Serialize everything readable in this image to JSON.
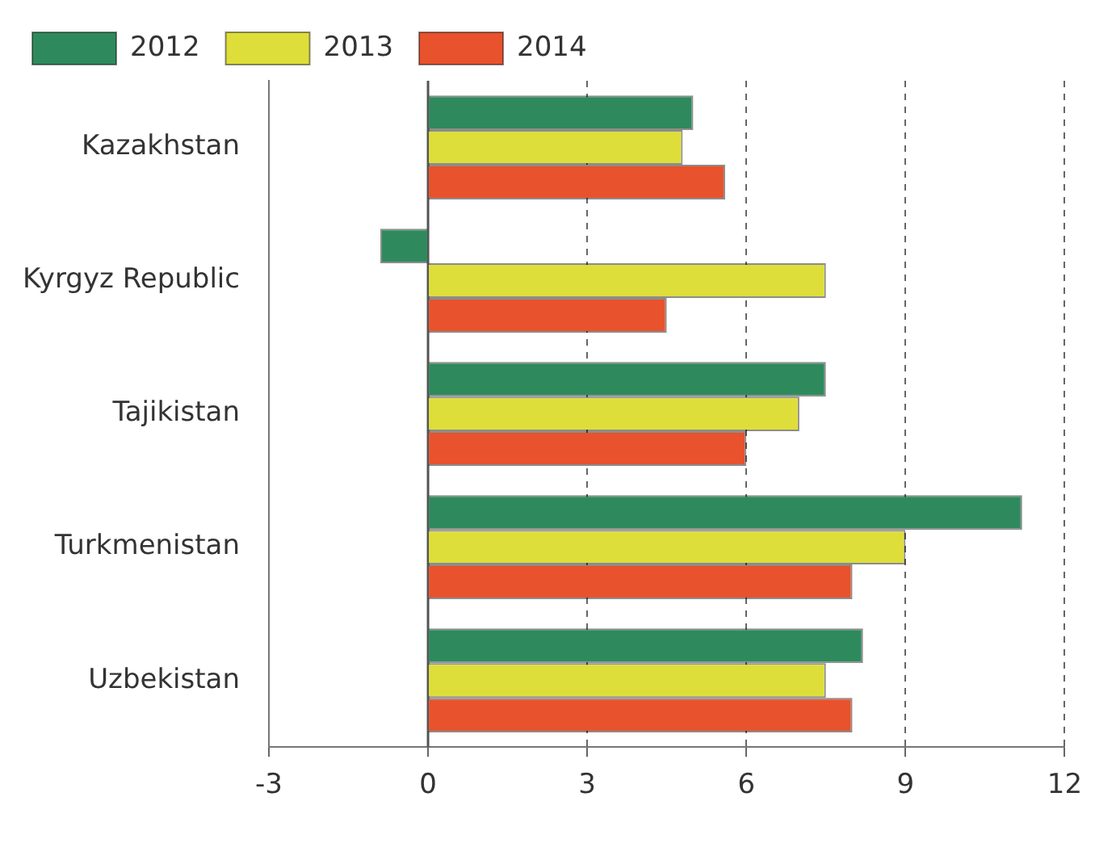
{
  "chart_data": {
    "type": "bar",
    "orientation": "horizontal",
    "categories": [
      "Kazakhstan",
      "Kyrgyz Republic",
      "Tajikistan",
      "Turkmenistan",
      "Uzbekistan"
    ],
    "series": [
      {
        "name": "2012",
        "color": "#2e8a5c",
        "values": [
          5.0,
          -0.9,
          7.5,
          11.2,
          8.2
        ]
      },
      {
        "name": "2013",
        "color": "#dede3a",
        "values": [
          4.8,
          7.5,
          7.0,
          9.0,
          7.5
        ]
      },
      {
        "name": "2014",
        "color": "#e8522c",
        "values": [
          5.6,
          4.5,
          6.0,
          8.0,
          8.0
        ]
      }
    ],
    "ref_lines": [
      {
        "axis": "x",
        "value": 0,
        "color": "#555555",
        "line_style": "solid"
      }
    ],
    "xlim": [
      -3,
      12
    ],
    "xticks": [
      -3,
      0,
      3,
      6,
      9,
      12
    ],
    "grid": "x",
    "line_style": "dashed",
    "legend": "top left"
  }
}
